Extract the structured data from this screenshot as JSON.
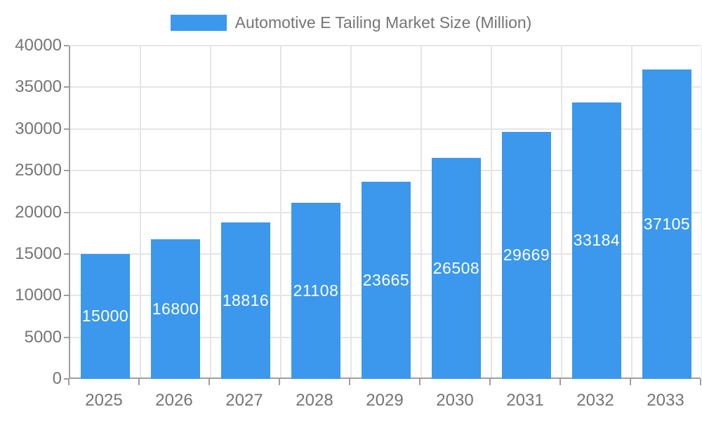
{
  "chart_data": {
    "type": "bar",
    "title": "Automotive E Tailing Market Size (Million)",
    "legend_entries": [
      "Automotive E Tailing Market Size (Million)"
    ],
    "legend_position": "top",
    "categories": [
      "2025",
      "2026",
      "2027",
      "2028",
      "2029",
      "2030",
      "2031",
      "2032",
      "2033"
    ],
    "series": [
      {
        "name": "Automotive E Tailing Market Size (Million)",
        "values": [
          15000,
          16800,
          18816,
          21108,
          23665,
          26508,
          29669,
          33184,
          37105
        ]
      }
    ],
    "bar_value_labels": [
      "15000",
      "16800",
      "18816",
      "21108",
      "23665",
      "26508",
      "29669",
      "33184",
      "37105"
    ],
    "xlabel": "",
    "ylabel": "",
    "ylim": [
      0,
      40000
    ],
    "yticks": [
      0,
      5000,
      10000,
      15000,
      20000,
      25000,
      30000,
      35000,
      40000
    ],
    "grid": true,
    "colors": {
      "bar": "#3b98ec",
      "bar_label": "#ffffff",
      "axis_text": "#757575",
      "axis_line": "#9e9e9e",
      "grid_line": "#e5e5e5",
      "background": "#ffffff"
    }
  }
}
